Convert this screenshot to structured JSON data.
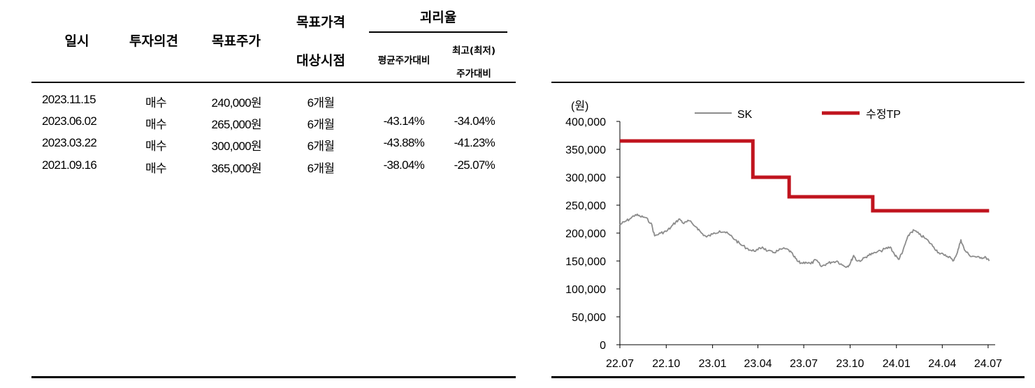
{
  "table": {
    "headers": {
      "date": "일시",
      "opinion": "투자의견",
      "target_price": "목표주가",
      "target_period_line1": "목표가격",
      "target_period_line2": "대상시점",
      "disparity": "괴리율",
      "avg_vs": "평균주가대비",
      "high_low_line1": "최고(최저)",
      "high_low_line2": "주가대비"
    },
    "rows": [
      {
        "date": "2023.11.15",
        "opinion": "매수",
        "target": "240,000원",
        "period": "6개월",
        "avg": "",
        "hl": ""
      },
      {
        "date": "2023.06.02",
        "opinion": "매수",
        "target": "265,000원",
        "period": "6개월",
        "avg": "-43.14%",
        "hl": "-34.04%"
      },
      {
        "date": "2023.03.22",
        "opinion": "매수",
        "target": "300,000원",
        "period": "6개월",
        "avg": "-43.88%",
        "hl": "-41.23%"
      },
      {
        "date": "2021.09.16",
        "opinion": "매수",
        "target": "365,000원",
        "period": "6개월",
        "avg": "-38.04%",
        "hl": "-25.07%"
      }
    ]
  },
  "chart_data": {
    "type": "line",
    "y_unit_label": "(원)",
    "ylim": [
      0,
      400000
    ],
    "y_ticks": [
      0,
      50000,
      100000,
      150000,
      200000,
      250000,
      300000,
      350000,
      400000
    ],
    "y_tick_labels": [
      "0",
      "50,000",
      "100,000",
      "150,000",
      "200,000",
      "250,000",
      "300,000",
      "350,000",
      "400,000"
    ],
    "x_range": [
      "2022-07-01",
      "2024-07-15"
    ],
    "x_ticks": [
      "2022-07-01",
      "2022-10-01",
      "2023-01-01",
      "2023-04-01",
      "2023-07-01",
      "2023-10-01",
      "2024-01-01",
      "2024-04-01",
      "2024-07-01"
    ],
    "x_tick_labels": [
      "22.07",
      "22.10",
      "23.01",
      "23.04",
      "23.07",
      "23.10",
      "24.01",
      "24.04",
      "24.07"
    ],
    "legend_placement": "top",
    "series": [
      {
        "name": "SK",
        "color": "#8c8c8c",
        "style": "line",
        "points": [
          [
            "2022-07-01",
            215000
          ],
          [
            "2022-07-10",
            220000
          ],
          [
            "2022-07-20",
            225000
          ],
          [
            "2022-08-01",
            233000
          ],
          [
            "2022-08-10",
            230000
          ],
          [
            "2022-08-20",
            228000
          ],
          [
            "2022-09-01",
            218000
          ],
          [
            "2022-09-08",
            195000
          ],
          [
            "2022-09-20",
            200000
          ],
          [
            "2022-10-01",
            203000
          ],
          [
            "2022-10-10",
            210000
          ],
          [
            "2022-10-20",
            220000
          ],
          [
            "2022-10-28",
            225000
          ],
          [
            "2022-11-05",
            217000
          ],
          [
            "2022-11-15",
            222000
          ],
          [
            "2022-12-01",
            210000
          ],
          [
            "2022-12-10",
            200000
          ],
          [
            "2022-12-20",
            193000
          ],
          [
            "2023-01-01",
            198000
          ],
          [
            "2023-01-15",
            204000
          ],
          [
            "2023-01-25",
            202000
          ],
          [
            "2023-02-05",
            196000
          ],
          [
            "2023-02-15",
            188000
          ],
          [
            "2023-02-25",
            180000
          ],
          [
            "2023-03-10",
            173000
          ],
          [
            "2023-03-20",
            168000
          ],
          [
            "2023-04-01",
            170000
          ],
          [
            "2023-04-10",
            175000
          ],
          [
            "2023-04-20",
            168000
          ],
          [
            "2023-05-01",
            165000
          ],
          [
            "2023-05-10",
            168000
          ],
          [
            "2023-05-20",
            172000
          ],
          [
            "2023-06-01",
            170000
          ],
          [
            "2023-06-10",
            160000
          ],
          [
            "2023-06-18",
            150000
          ],
          [
            "2023-06-25",
            146000
          ],
          [
            "2023-07-05",
            148000
          ],
          [
            "2023-07-15",
            145000
          ],
          [
            "2023-07-25",
            152000
          ],
          [
            "2023-08-05",
            140000
          ],
          [
            "2023-08-15",
            145000
          ],
          [
            "2023-08-25",
            148000
          ],
          [
            "2023-09-05",
            150000
          ],
          [
            "2023-09-15",
            143000
          ],
          [
            "2023-09-25",
            140000
          ],
          [
            "2023-10-01",
            145000
          ],
          [
            "2023-10-08",
            160000
          ],
          [
            "2023-10-15",
            150000
          ],
          [
            "2023-10-25",
            152000
          ],
          [
            "2023-11-05",
            160000
          ],
          [
            "2023-11-15",
            163000
          ],
          [
            "2023-12-01",
            168000
          ],
          [
            "2023-12-10",
            172000
          ],
          [
            "2023-12-20",
            175000
          ],
          [
            "2023-12-28",
            162000
          ],
          [
            "2024-01-05",
            153000
          ],
          [
            "2024-01-12",
            163000
          ],
          [
            "2024-01-20",
            185000
          ],
          [
            "2024-01-28",
            200000
          ],
          [
            "2024-02-05",
            205000
          ],
          [
            "2024-02-15",
            198000
          ],
          [
            "2024-02-25",
            192000
          ],
          [
            "2024-03-05",
            185000
          ],
          [
            "2024-03-15",
            175000
          ],
          [
            "2024-03-25",
            165000
          ],
          [
            "2024-04-05",
            160000
          ],
          [
            "2024-04-15",
            158000
          ],
          [
            "2024-04-22",
            150000
          ],
          [
            "2024-05-01",
            165000
          ],
          [
            "2024-05-08",
            188000
          ],
          [
            "2024-05-15",
            170000
          ],
          [
            "2024-05-25",
            160000
          ],
          [
            "2024-06-05",
            158000
          ],
          [
            "2024-06-15",
            155000
          ],
          [
            "2024-06-25",
            158000
          ],
          [
            "2024-07-03",
            150000
          ]
        ]
      },
      {
        "name": "수정TP",
        "color": "#c0141e",
        "style": "step",
        "points": [
          [
            "2022-07-01",
            365000
          ],
          [
            "2023-03-22",
            300000
          ],
          [
            "2023-06-02",
            265000
          ],
          [
            "2023-11-15",
            240000
          ],
          [
            "2024-07-03",
            240000
          ]
        ]
      }
    ]
  }
}
